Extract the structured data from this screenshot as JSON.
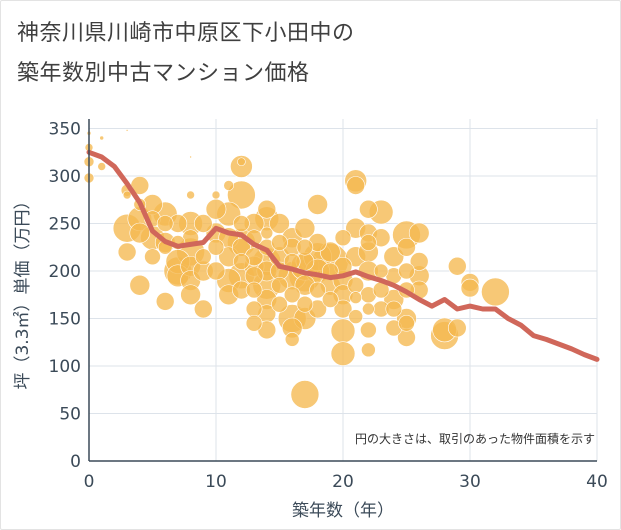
{
  "title_line1": "神奈川県川崎市中原区下小田中の",
  "title_line2": "築年数別中古マンション価格",
  "chart_data": {
    "type": "scatter",
    "title": "神奈川県川崎市中原区下小田中の築年数別中古マンション価格",
    "xlabel": "築年数（年）",
    "ylabel": "坪（3.3㎡）単価（万円）",
    "xlim": [
      0,
      40
    ],
    "ylim": [
      0,
      360
    ],
    "xticks": [
      0,
      10,
      20,
      30,
      40
    ],
    "yticks": [
      0,
      50,
      100,
      150,
      200,
      250,
      300,
      350
    ],
    "grid": true,
    "note": "円の大きさは、取引のあった物件面積を示す",
    "colors": {
      "bubble": "#f5b950",
      "trend": "#d0675a",
      "grid": "#dde3ea",
      "axis": "#3b4a58"
    },
    "series": [
      {
        "type": "bubble",
        "points": [
          [
            0,
            345,
            2
          ],
          [
            0,
            330,
            4
          ],
          [
            0,
            315,
            5
          ],
          [
            0,
            298,
            5
          ],
          [
            1,
            340,
            2
          ],
          [
            1,
            310,
            4
          ],
          [
            3,
            348,
            1
          ],
          [
            3,
            285,
            6
          ],
          [
            3,
            280,
            4
          ],
          [
            3,
            245,
            14
          ],
          [
            3,
            220,
            9
          ],
          [
            4,
            290,
            9
          ],
          [
            4,
            270,
            6
          ],
          [
            4,
            255,
            12
          ],
          [
            4,
            240,
            10
          ],
          [
            4,
            185,
            10
          ],
          [
            5,
            270,
            10
          ],
          [
            5,
            255,
            8
          ],
          [
            5,
            235,
            12
          ],
          [
            5,
            215,
            8
          ],
          [
            6,
            260,
            12
          ],
          [
            6,
            250,
            8
          ],
          [
            6,
            230,
            10
          ],
          [
            6,
            225,
            7
          ],
          [
            6,
            168,
            9
          ],
          [
            7,
            250,
            9
          ],
          [
            7,
            230,
            7
          ],
          [
            7,
            210,
            12
          ],
          [
            7,
            200,
            14
          ],
          [
            7,
            195,
            11
          ],
          [
            8,
            320,
            1
          ],
          [
            8,
            280,
            4
          ],
          [
            8,
            250,
            12
          ],
          [
            8,
            235,
            8
          ],
          [
            8,
            220,
            14
          ],
          [
            8,
            205,
            10
          ],
          [
            8,
            190,
            10
          ],
          [
            8,
            175,
            10
          ],
          [
            9,
            250,
            9
          ],
          [
            9,
            215,
            8
          ],
          [
            9,
            200,
            10
          ],
          [
            9,
            160,
            9
          ],
          [
            10,
            280,
            4
          ],
          [
            10,
            265,
            10
          ],
          [
            10,
            240,
            10
          ],
          [
            10,
            225,
            8
          ],
          [
            10,
            200,
            9
          ],
          [
            11,
            290,
            5
          ],
          [
            11,
            260,
            12
          ],
          [
            11,
            235,
            10
          ],
          [
            11,
            215,
            10
          ],
          [
            11,
            190,
            12
          ],
          [
            11,
            175,
            10
          ],
          [
            12,
            315,
            4
          ],
          [
            12,
            310,
            11
          ],
          [
            12,
            280,
            14
          ],
          [
            12,
            250,
            8
          ],
          [
            12,
            230,
            14
          ],
          [
            12,
            225,
            9
          ],
          [
            12,
            210,
            8
          ],
          [
            12,
            195,
            13
          ],
          [
            12,
            180,
            9
          ],
          [
            13,
            250,
            10
          ],
          [
            13,
            235,
            8
          ],
          [
            13,
            215,
            9
          ],
          [
            13,
            205,
            10
          ],
          [
            13,
            195,
            9
          ],
          [
            13,
            180,
            8
          ],
          [
            13,
            160,
            8
          ],
          [
            13,
            145,
            8
          ],
          [
            14,
            265,
            9
          ],
          [
            14,
            255,
            12
          ],
          [
            14,
            240,
            6
          ],
          [
            14,
            225,
            8
          ],
          [
            14,
            210,
            14
          ],
          [
            14,
            200,
            10
          ],
          [
            14,
            185,
            14
          ],
          [
            14,
            170,
            10
          ],
          [
            14,
            155,
            9
          ],
          [
            14,
            138,
            9
          ],
          [
            15,
            250,
            10
          ],
          [
            15,
            230,
            8
          ],
          [
            15,
            215,
            10
          ],
          [
            15,
            200,
            9
          ],
          [
            15,
            185,
            8
          ],
          [
            15,
            165,
            8
          ],
          [
            16,
            235,
            10
          ],
          [
            16,
            225,
            9
          ],
          [
            16,
            210,
            8
          ],
          [
            16,
            195,
            14
          ],
          [
            16,
            175,
            8
          ],
          [
            16,
            150,
            14
          ],
          [
            16,
            140,
            10
          ],
          [
            16,
            128,
            7
          ],
          [
            17,
            245,
            10
          ],
          [
            17,
            225,
            8
          ],
          [
            17,
            210,
            9
          ],
          [
            17,
            205,
            14
          ],
          [
            17,
            195,
            16
          ],
          [
            17,
            185,
            10
          ],
          [
            17,
            165,
            8
          ],
          [
            17,
            150,
            11
          ],
          [
            17,
            70,
            14
          ],
          [
            18,
            270,
            10
          ],
          [
            18,
            230,
            9
          ],
          [
            18,
            215,
            14
          ],
          [
            18,
            200,
            12
          ],
          [
            18,
            180,
            8
          ],
          [
            18,
            160,
            9
          ],
          [
            19,
            220,
            10
          ],
          [
            19,
            210,
            18
          ],
          [
            19,
            200,
            8
          ],
          [
            19,
            185,
            10
          ],
          [
            19,
            170,
            8
          ],
          [
            20,
            235,
            8
          ],
          [
            20,
            205,
            9
          ],
          [
            20,
            190,
            10
          ],
          [
            20,
            175,
            10
          ],
          [
            20,
            160,
            9
          ],
          [
            20,
            137,
            12
          ],
          [
            20,
            113,
            12
          ],
          [
            21,
            295,
            11
          ],
          [
            21,
            290,
            9
          ],
          [
            21,
            245,
            10
          ],
          [
            21,
            215,
            10
          ],
          [
            21,
            185,
            8
          ],
          [
            21,
            172,
            6
          ],
          [
            21,
            152,
            7
          ],
          [
            22,
            265,
            9
          ],
          [
            22,
            240,
            9
          ],
          [
            22,
            230,
            8
          ],
          [
            22,
            220,
            10
          ],
          [
            22,
            200,
            10
          ],
          [
            22,
            175,
            8
          ],
          [
            22,
            160,
            6
          ],
          [
            22,
            138,
            8
          ],
          [
            22,
            117,
            7
          ],
          [
            23,
            262,
            12
          ],
          [
            23,
            235,
            9
          ],
          [
            23,
            200,
            7
          ],
          [
            23,
            180,
            8
          ],
          [
            23,
            160,
            8
          ],
          [
            24,
            215,
            10
          ],
          [
            24,
            195,
            8
          ],
          [
            24,
            170,
            10
          ],
          [
            24,
            160,
            8
          ],
          [
            24,
            140,
            8
          ],
          [
            25,
            238,
            14
          ],
          [
            25,
            225,
            9
          ],
          [
            25,
            200,
            8
          ],
          [
            25,
            180,
            8
          ],
          [
            25,
            150,
            10
          ],
          [
            25,
            145,
            8
          ],
          [
            25,
            130,
            9
          ],
          [
            26,
            240,
            10
          ],
          [
            26,
            210,
            9
          ],
          [
            26,
            195,
            10
          ],
          [
            26,
            180,
            9
          ],
          [
            28,
            138,
            12
          ],
          [
            28,
            132,
            14
          ],
          [
            29,
            205,
            9
          ],
          [
            29,
            140,
            9
          ],
          [
            30,
            188,
            9
          ],
          [
            30,
            182,
            9
          ],
          [
            32,
            178,
            14
          ]
        ]
      },
      {
        "type": "line",
        "points": [
          [
            0,
            325
          ],
          [
            1,
            320
          ],
          [
            2,
            310
          ],
          [
            3,
            292
          ],
          [
            4,
            272
          ],
          [
            5,
            242
          ],
          [
            6,
            231
          ],
          [
            7,
            226
          ],
          [
            8,
            228
          ],
          [
            9,
            230
          ],
          [
            10,
            245
          ],
          [
            11,
            240
          ],
          [
            12,
            238
          ],
          [
            13,
            228
          ],
          [
            14,
            222
          ],
          [
            15,
            205
          ],
          [
            16,
            202
          ],
          [
            17,
            198
          ],
          [
            18,
            196
          ],
          [
            19,
            193
          ],
          [
            20,
            195
          ],
          [
            21,
            199
          ],
          [
            22,
            194
          ],
          [
            23,
            190
          ],
          [
            24,
            185
          ],
          [
            25,
            178
          ],
          [
            26,
            170
          ],
          [
            27,
            163
          ],
          [
            28,
            170
          ],
          [
            29,
            160
          ],
          [
            30,
            163
          ],
          [
            31,
            160
          ],
          [
            32,
            160
          ],
          [
            33,
            150
          ],
          [
            34,
            143
          ],
          [
            35,
            132
          ],
          [
            36,
            128
          ],
          [
            37,
            123
          ],
          [
            38,
            118
          ],
          [
            39,
            112
          ],
          [
            40,
            107
          ]
        ]
      }
    ]
  }
}
